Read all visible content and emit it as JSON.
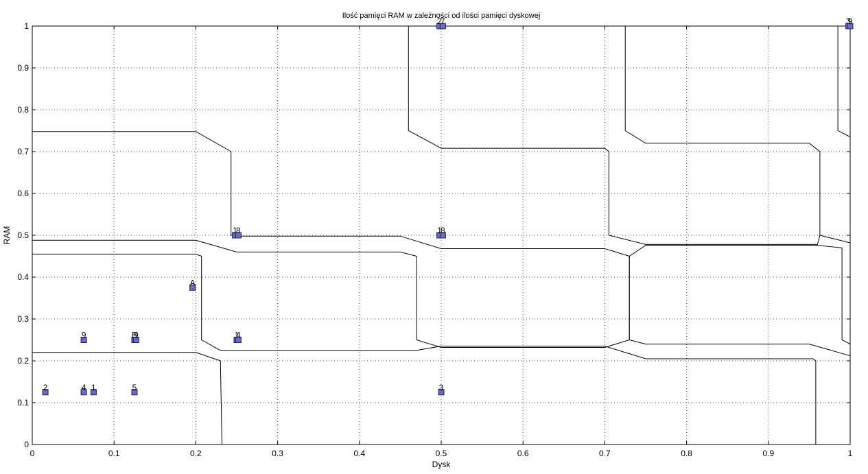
{
  "chart_data": {
    "type": "scatter",
    "title": "Ilość pamięci RAM w zależności od ilości pamięci dyskowej",
    "xlabel": "Dysk",
    "ylabel": "RAM",
    "xlim": [
      0,
      1
    ],
    "ylim": [
      0,
      1
    ],
    "grid": true,
    "x_ticks": [
      "0",
      "0.1",
      "0.2",
      "0.3",
      "0.4",
      "0.5",
      "0.6",
      "0.7",
      "0.8",
      "0.9",
      "1"
    ],
    "y_ticks": [
      "0",
      "0.1",
      "0.2",
      "0.3",
      "0.4",
      "0.5",
      "0.6",
      "0.7",
      "0.8",
      "0.9",
      "1"
    ],
    "marker_color": "#6b6bbf",
    "line_color": "#000000",
    "points": [
      {
        "label": "2",
        "x": 0.016,
        "y": 0.125
      },
      {
        "label": "4",
        "x": 0.063,
        "y": 0.125
      },
      {
        "label": "1",
        "x": 0.075,
        "y": 0.125
      },
      {
        "label": "5",
        "x": 0.125,
        "y": 0.125
      },
      {
        "label": "3",
        "x": 0.5,
        "y": 0.125
      },
      {
        "label": "9",
        "x": 0.063,
        "y": 0.25
      },
      {
        "label": "B",
        "x": 0.125,
        "y": 0.25
      },
      {
        "label": "9",
        "x": 0.127,
        "y": 0.25
      },
      {
        "label": "1",
        "x": 0.25,
        "y": 0.25
      },
      {
        "label": "4",
        "x": 0.252,
        "y": 0.25
      },
      {
        "label": "A",
        "x": 0.196,
        "y": 0.375
      },
      {
        "label": "1",
        "x": 0.248,
        "y": 0.5
      },
      {
        "label": "8",
        "x": 0.252,
        "y": 0.5
      },
      {
        "label": "1",
        "x": 0.498,
        "y": 0.5
      },
      {
        "label": "8",
        "x": 0.502,
        "y": 0.5
      },
      {
        "label": "2",
        "x": 0.498,
        "y": 1.0
      },
      {
        "label": "7",
        "x": 0.502,
        "y": 1.0
      },
      {
        "label": "3",
        "x": 0.998,
        "y": 1.0
      },
      {
        "label": "9",
        "x": 1.0,
        "y": 1.0
      }
    ],
    "boundaries": [
      [
        [
          0,
          0.22
        ],
        [
          0.2,
          0.22
        ],
        [
          0.23,
          0.2
        ],
        [
          0.232,
          0
        ]
      ],
      [
        [
          0,
          0.455
        ],
        [
          0.2,
          0.455
        ],
        [
          0.207,
          0.45
        ],
        [
          0.207,
          0.25
        ],
        [
          0.23,
          0.225
        ],
        [
          0.47,
          0.225
        ],
        [
          0.5,
          0.235
        ],
        [
          0.7,
          0.235
        ],
        [
          0.75,
          0.205
        ],
        [
          0.955,
          0.205
        ],
        [
          0.958,
          0.2
        ],
        [
          0.958,
          0
        ]
      ],
      [
        [
          0,
          0.488
        ],
        [
          0.2,
          0.488
        ],
        [
          0.25,
          0.46
        ],
        [
          0.45,
          0.46
        ],
        [
          0.47,
          0.45
        ],
        [
          0.47,
          0.25
        ],
        [
          0.5,
          0.232
        ],
        [
          0.7,
          0.232
        ],
        [
          0.73,
          0.25
        ],
        [
          0.73,
          0.45
        ],
        [
          0.75,
          0.476
        ],
        [
          0.96,
          0.476
        ],
        [
          0.99,
          0.47
        ],
        [
          0.99,
          0.25
        ],
        [
          1,
          0.24
        ]
      ],
      [
        [
          0,
          0.748
        ],
        [
          0.2,
          0.748
        ],
        [
          0.243,
          0.7
        ],
        [
          0.243,
          0.5
        ],
        [
          0.25,
          0.498
        ],
        [
          0.45,
          0.498
        ],
        [
          0.5,
          0.468
        ],
        [
          0.7,
          0.468
        ],
        [
          0.73,
          0.45
        ],
        [
          0.73,
          0.25
        ],
        [
          0.75,
          0.24
        ],
        [
          0.95,
          0.24
        ],
        [
          1,
          0.212
        ]
      ],
      [
        [
          0.46,
          1
        ],
        [
          0.46,
          0.75
        ],
        [
          0.5,
          0.708
        ],
        [
          0.7,
          0.708
        ],
        [
          0.705,
          0.7
        ],
        [
          0.705,
          0.5
        ],
        [
          0.75,
          0.478
        ],
        [
          0.96,
          0.478
        ],
        [
          0.963,
          0.5
        ],
        [
          0.963,
          0.7
        ],
        [
          0.95,
          0.72
        ],
        [
          0.75,
          0.72
        ],
        [
          0.725,
          0.75
        ],
        [
          0.725,
          1
        ]
      ],
      [
        [
          0.963,
          0.5
        ],
        [
          1,
          0.482
        ]
      ],
      [
        [
          0.985,
          1
        ],
        [
          0.985,
          0.75
        ],
        [
          1,
          0.735
        ]
      ]
    ]
  }
}
